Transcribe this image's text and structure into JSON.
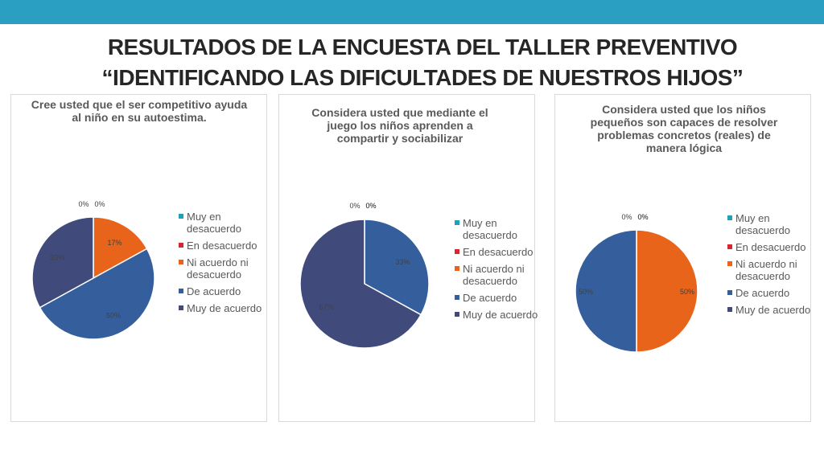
{
  "header": {
    "title_line1": "RESULTADOS DE LA ENCUESTA DEL TALLER PREVENTIVO",
    "title_line2": "“IDENTIFICANDO LAS DIFICULTADES DE NUESTROS HIJOS”"
  },
  "chart_data": [
    {
      "type": "pie",
      "title": "Cree usted que el ser competitivo ayuda al niño en su autoestima.",
      "categories": [
        "Muy en desacuerdo",
        "En desacuerdo",
        "Ni acuerdo ni desacuerdo",
        "De acuerdo",
        "Muy de acuerdo"
      ],
      "values": [
        0,
        0,
        17,
        50,
        33
      ],
      "labels": [
        "0%",
        "0%",
        "17%",
        "50%",
        "33%"
      ],
      "legend": "right"
    },
    {
      "type": "pie",
      "title": "Considera usted que mediante el juego los niños aprenden a compartir y sociabilizar",
      "categories": [
        "Muy en desacuerdo",
        "En desacuerdo",
        "Ni acuerdo ni desacuerdo",
        "De acuerdo",
        "Muy de acuerdo"
      ],
      "values": [
        0,
        0,
        0,
        33,
        67
      ],
      "labels": [
        "0%",
        "0%",
        "0%",
        "33%",
        "67%"
      ],
      "legend": "right"
    },
    {
      "type": "pie",
      "title": "Considera usted que los niños pequeños son capaces de resolver problemas concretos (reales) de manera lógica",
      "categories": [
        "Muy en desacuerdo",
        "En desacuerdo",
        "Ni acuerdo ni desacuerdo",
        "De acuerdo",
        "Muy de acuerdo"
      ],
      "values": [
        0,
        0,
        50,
        50,
        0
      ],
      "labels": [
        "0%",
        "0%",
        "50%",
        "50%",
        "0%"
      ],
      "legend": "right"
    }
  ],
  "colors": {
    "Muy en desacuerdo": "#1fa2b8",
    "En desacuerdo": "#d9262c",
    "Ni acuerdo ni desacuerdo": "#e8641b",
    "De acuerdo": "#355f9c",
    "Muy de acuerdo": "#404b7c"
  }
}
